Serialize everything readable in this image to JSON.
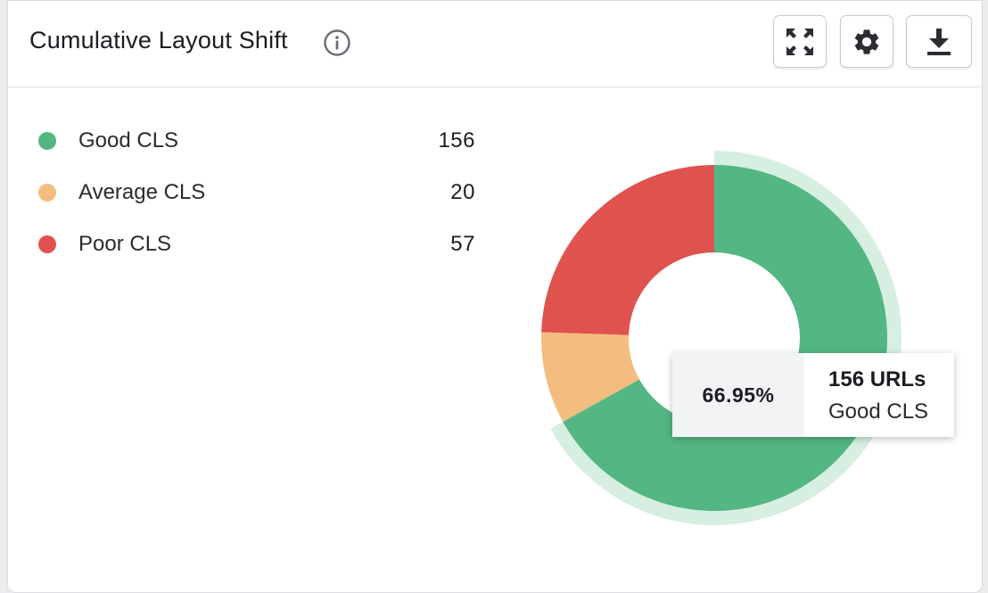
{
  "header": {
    "title": "Cumulative Layout Shift",
    "info_icon": "info-icon",
    "buttons": [
      {
        "icon": "expand-icon"
      },
      {
        "icon": "gear-icon"
      },
      {
        "icon": "download-icon"
      }
    ]
  },
  "legend": [
    {
      "label": "Good CLS",
      "count": "156",
      "color": "#54b682"
    },
    {
      "label": "Average CLS",
      "count": "20",
      "color": "#f3bd80"
    },
    {
      "label": "Poor CLS",
      "count": "57",
      "color": "#e0524e"
    }
  ],
  "tooltip": {
    "percent": "66.95%",
    "urls": "156 URLs",
    "name": "Good CLS"
  },
  "chart_data": {
    "type": "pie",
    "title": "Cumulative Layout Shift",
    "categories": [
      "Good CLS",
      "Average CLS",
      "Poor CLS"
    ],
    "values": [
      156,
      20,
      57
    ],
    "colors": [
      "#54b682",
      "#f3bd80",
      "#e0524e"
    ],
    "highlighted": "Good CLS",
    "highlight_color": "#d6efe1",
    "legend_position": "left"
  }
}
